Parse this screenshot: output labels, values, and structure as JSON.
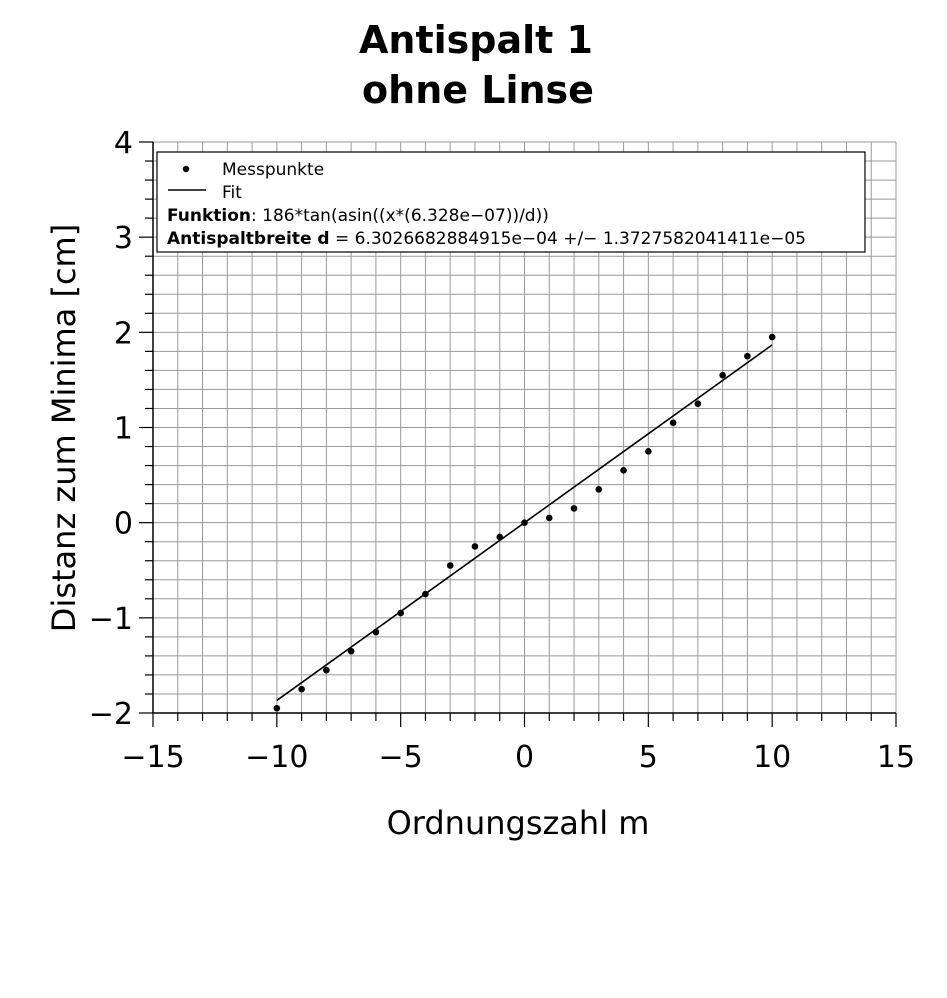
{
  "chart_data": {
    "type": "scatter",
    "title_lines": [
      "Antispalt 1",
      "ohne Linse"
    ],
    "xlabel": "Ordnungszahl m",
    "ylabel": "Distanz zum Minima [cm]",
    "xlim": [
      -15,
      15
    ],
    "ylim": [
      -2,
      4
    ],
    "x_ticks": [
      -15,
      -10,
      -5,
      0,
      5,
      10,
      15
    ],
    "x_tick_labels": [
      "−15",
      "−10",
      "−5",
      "0",
      "5",
      "10",
      "15"
    ],
    "y_ticks": [
      -2,
      -1,
      0,
      1,
      2,
      3,
      4
    ],
    "y_tick_labels": [
      "−2",
      "−1",
      "0",
      "1",
      "2",
      "3",
      "4"
    ],
    "grid": true,
    "legend_position": "top",
    "series": [
      {
        "name": "Messpunkte",
        "kind": "points",
        "x": [
          -10,
          -9,
          -8,
          -7,
          -6,
          -5,
          -4,
          -3,
          -2,
          -1,
          0,
          1,
          2,
          3,
          4,
          5,
          6,
          7,
          8,
          9,
          10
        ],
        "y": [
          -1.95,
          -1.75,
          -1.55,
          -1.35,
          -1.15,
          -0.95,
          -0.75,
          -0.45,
          -0.25,
          -0.15,
          0.0,
          0.05,
          0.15,
          0.35,
          0.55,
          0.75,
          1.05,
          1.25,
          1.55,
          1.75,
          1.95
        ]
      },
      {
        "name": "Fit",
        "kind": "line",
        "x": [
          -10,
          10
        ],
        "y": [
          -1.868,
          1.868
        ]
      }
    ],
    "legend": {
      "entries": [
        "Messpunkte",
        "Fit"
      ],
      "function_label": "Funktion",
      "function_text": ": 186*tan(asin((x*(6.328e−07))/d))",
      "param_label": "Antispaltbreite d",
      "param_text": " = 6.3026682884915e−04 +/− 1.3727582041411e−05"
    }
  }
}
